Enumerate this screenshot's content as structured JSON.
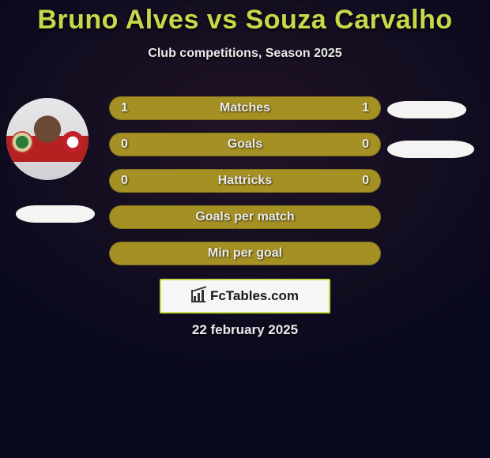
{
  "title": "Bruno Alves vs Souza Carvalho",
  "subtitle": "Club competitions, Season 2025",
  "date": "22 february 2025",
  "logo_text": "FcTables.com",
  "row_label_color": "#eaeaea",
  "rows": [
    {
      "label": "Matches",
      "left": "1",
      "right": "1",
      "bg": "#a59024",
      "left_fill": 0.5
    },
    {
      "label": "Goals",
      "left": "0",
      "right": "0",
      "bg": "#a59024",
      "left_fill": 0.5
    },
    {
      "label": "Hattricks",
      "left": "0",
      "right": "0",
      "bg": "#a59024",
      "left_fill": 0.5
    },
    {
      "label": "Goals per match",
      "left": "",
      "right": "",
      "bg": "#a59024",
      "left_fill": 0.5
    },
    {
      "label": "Min per goal",
      "left": "",
      "right": "",
      "bg": "#a59024",
      "left_fill": 0.5
    }
  ],
  "colors": {
    "title": "#c7d94a",
    "subtitle": "#e8e8e8",
    "background": "#0a0a1a",
    "logo_border": "#c7d94a",
    "logo_bg": "#f6f6f4",
    "pill": "#f4f4f2"
  }
}
